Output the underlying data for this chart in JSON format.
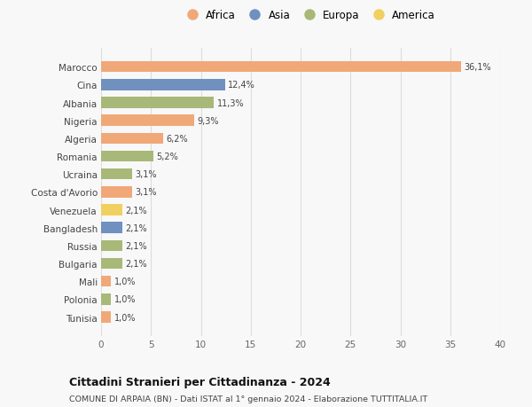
{
  "countries": [
    "Tunisia",
    "Polonia",
    "Mali",
    "Bulgaria",
    "Russia",
    "Bangladesh",
    "Venezuela",
    "Costa d'Avorio",
    "Ucraina",
    "Romania",
    "Algeria",
    "Nigeria",
    "Albania",
    "Cina",
    "Marocco"
  ],
  "values": [
    1.0,
    1.0,
    1.0,
    2.1,
    2.1,
    2.1,
    2.1,
    3.1,
    3.1,
    5.2,
    6.2,
    9.3,
    11.3,
    12.4,
    36.1
  ],
  "labels": [
    "1,0%",
    "1,0%",
    "1,0%",
    "2,1%",
    "2,1%",
    "2,1%",
    "2,1%",
    "3,1%",
    "3,1%",
    "5,2%",
    "6,2%",
    "9,3%",
    "11,3%",
    "12,4%",
    "36,1%"
  ],
  "continents": [
    "Africa",
    "Europa",
    "Africa",
    "Europa",
    "Europa",
    "Asia",
    "America",
    "Africa",
    "Europa",
    "Europa",
    "Africa",
    "Africa",
    "Europa",
    "Asia",
    "Africa"
  ],
  "continent_colors": {
    "Africa": "#F0A878",
    "Asia": "#7090C0",
    "Europa": "#A8B878",
    "America": "#F0D060"
  },
  "legend_order": [
    "Africa",
    "Asia",
    "Europa",
    "America"
  ],
  "title": "Cittadini Stranieri per Cittadinanza - 2024",
  "subtitle": "COMUNE DI ARPAIA (BN) - Dati ISTAT al 1° gennaio 2024 - Elaborazione TUTTITALIA.IT",
  "xlim": [
    0,
    40
  ],
  "xticks": [
    0,
    5,
    10,
    15,
    20,
    25,
    30,
    35,
    40
  ],
  "background_color": "#f8f8f8",
  "grid_color": "#dddddd"
}
